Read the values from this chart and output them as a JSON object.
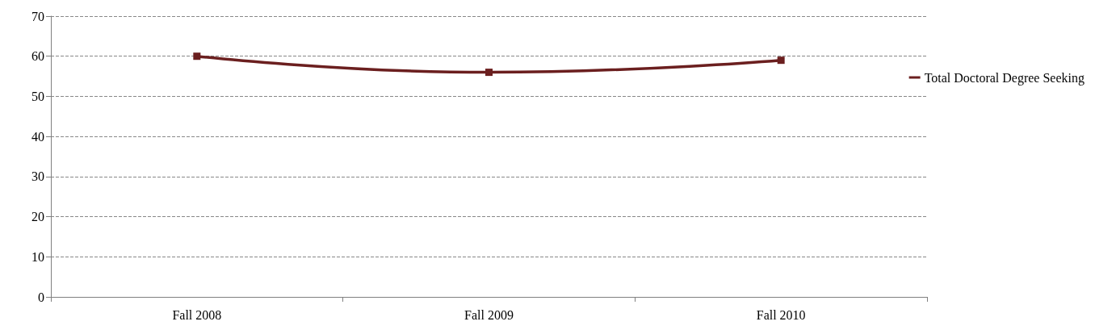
{
  "chart_data": {
    "type": "line",
    "categories": [
      "Fall 2008",
      "Fall 2009",
      "Fall 2010"
    ],
    "series": [
      {
        "name": "Total Doctoral Degree Seeking",
        "color": "#6b1f1f",
        "values": [
          60,
          56,
          59
        ]
      }
    ],
    "ylim": [
      0,
      70
    ],
    "yticks": [
      0,
      10,
      20,
      30,
      40,
      50,
      60,
      70
    ],
    "grid": "y",
    "legend": "right",
    "marker": "square",
    "line_style": "solid"
  }
}
